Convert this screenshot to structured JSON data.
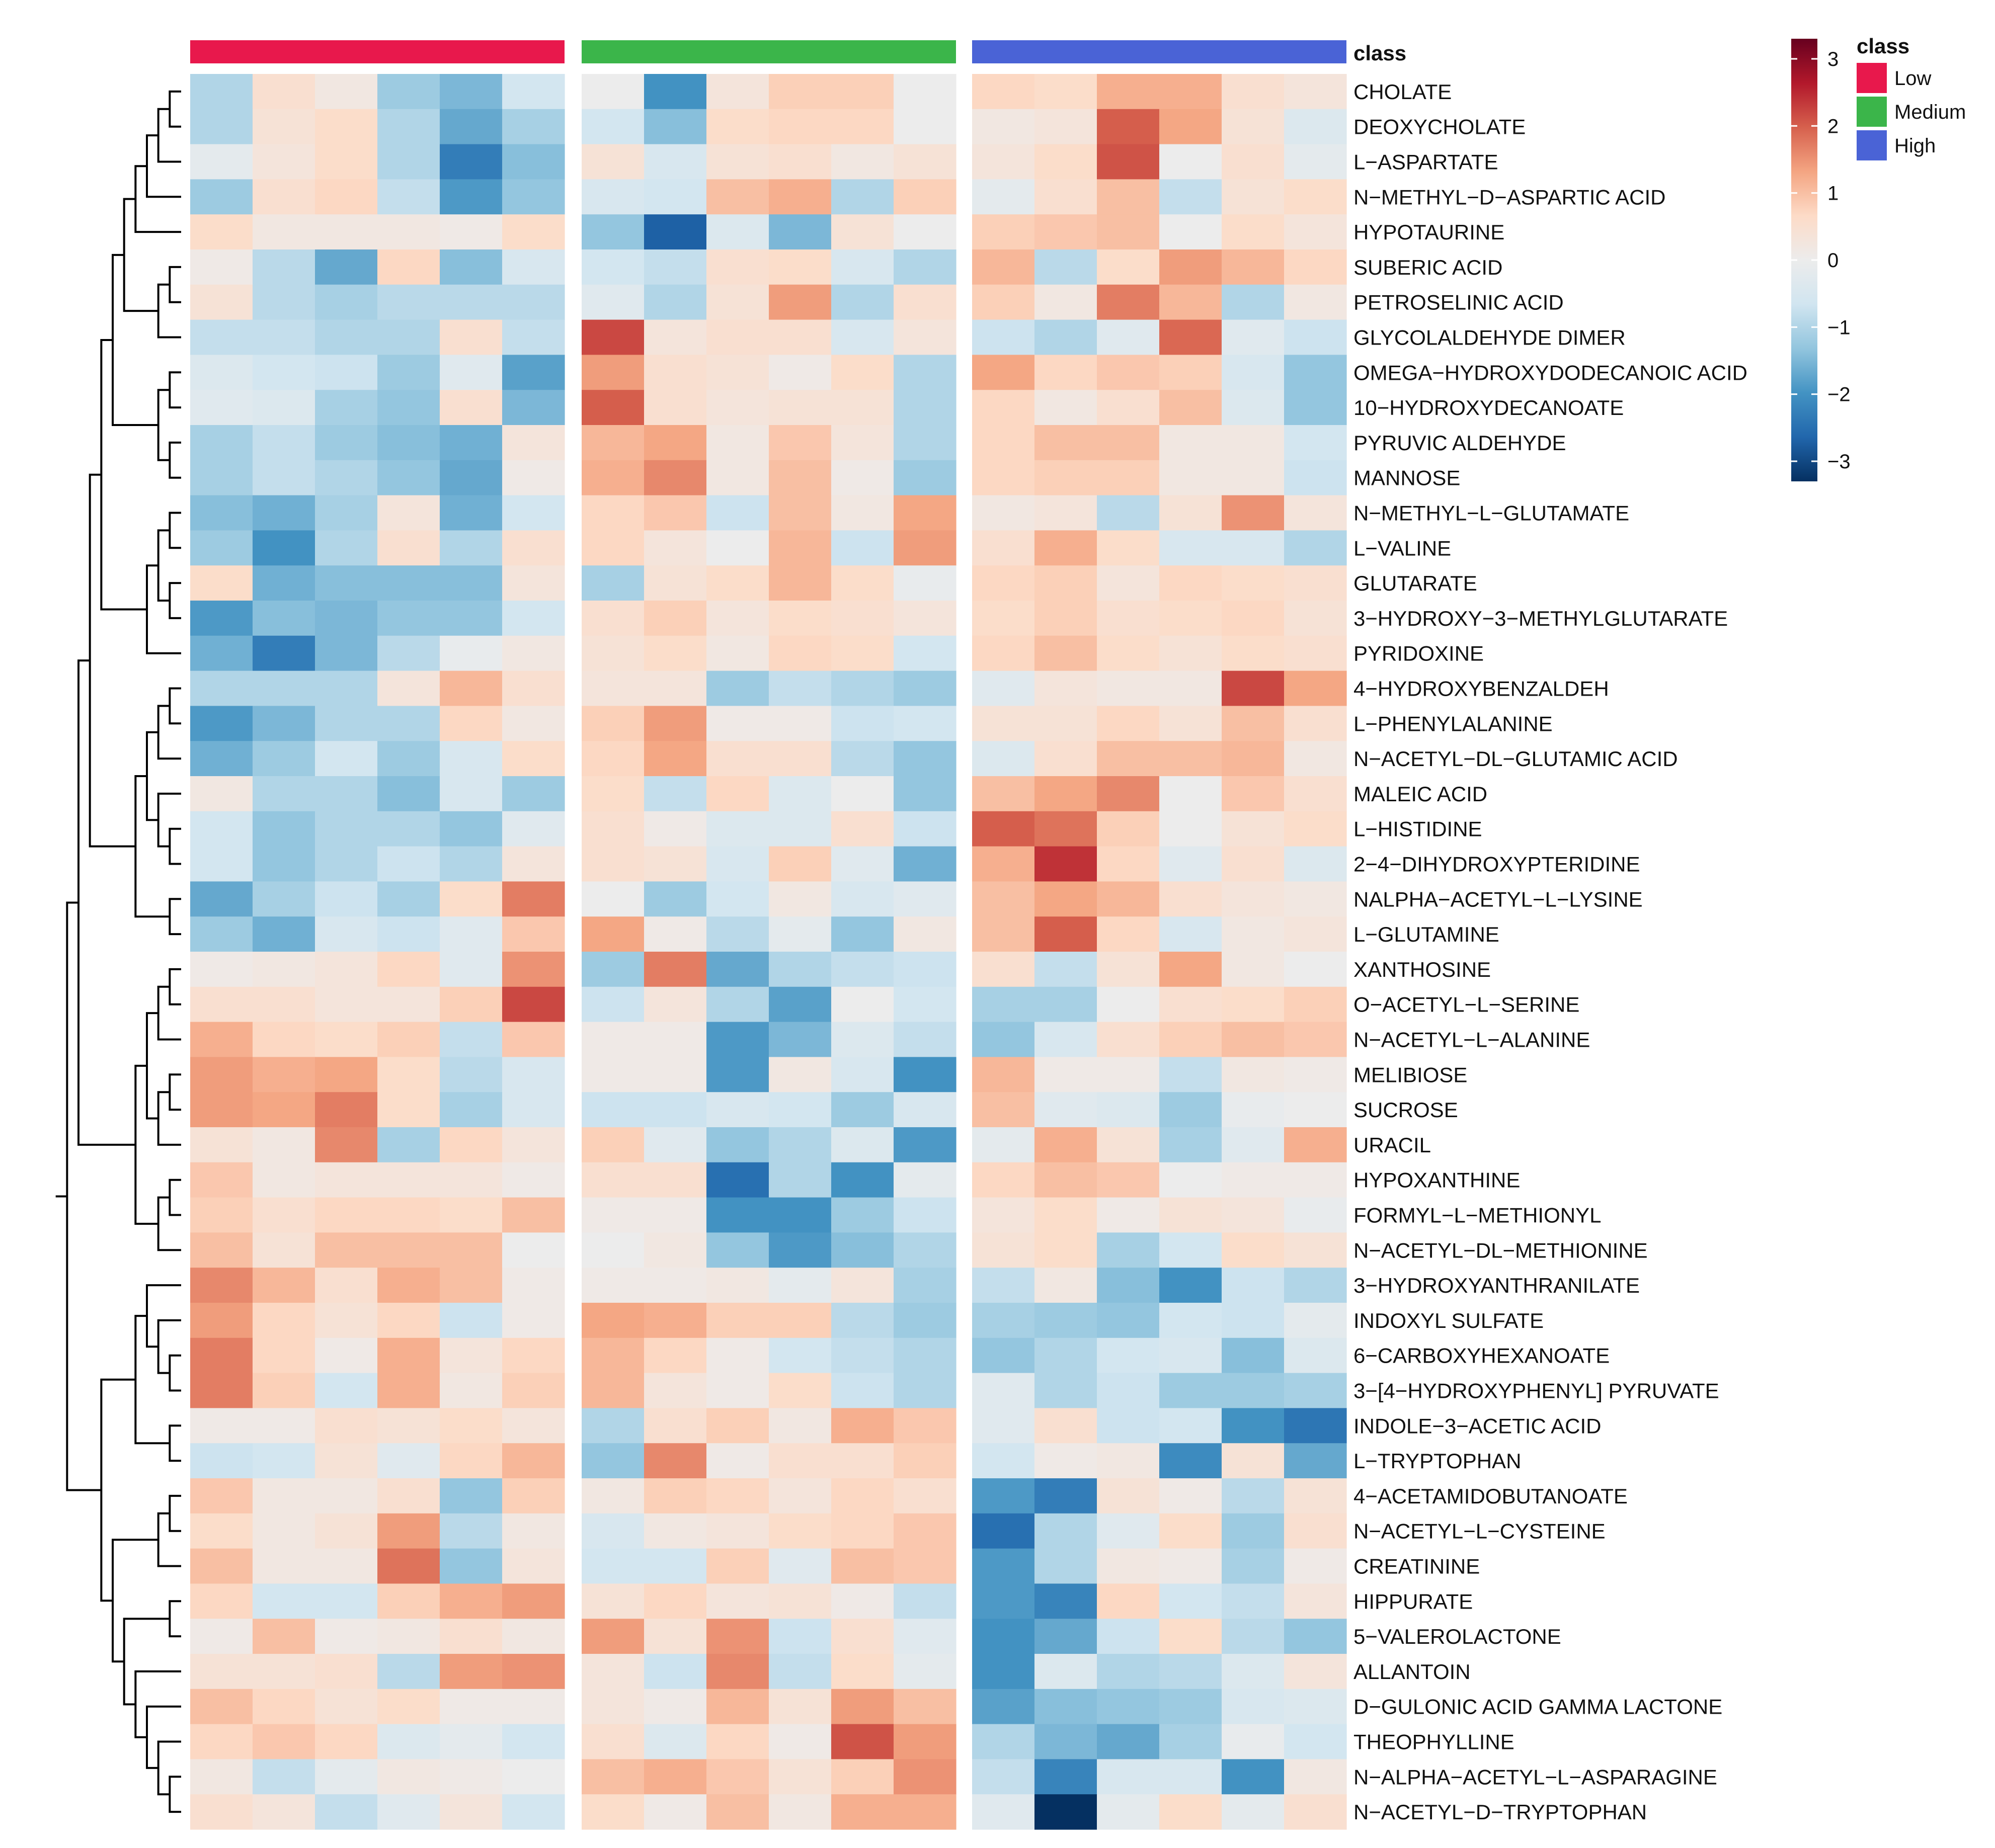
{
  "chart_data": {
    "type": "heatmap",
    "title": "",
    "annotation_title": "class",
    "classes": [
      {
        "name": "Low",
        "color": "#e8184c",
        "n_samples": 6
      },
      {
        "name": "Medium",
        "color": "#3bb54a",
        "n_samples": 6
      },
      {
        "name": "High",
        "color": "#4a63d6",
        "n_samples": 6
      }
    ],
    "color_scale": {
      "min": -3.3,
      "max": 3.3,
      "ticks": [
        3,
        2,
        1,
        0,
        -1,
        -2,
        -3
      ],
      "tick_labels": [
        "3",
        "2",
        "1",
        "0",
        "−1",
        "−2",
        "−3"
      ],
      "colors": [
        "#053061",
        "#2166ac",
        "#4393c3",
        "#92c5de",
        "#d1e5f0",
        "#ececec",
        "#fddbc7",
        "#f4a582",
        "#d6604d",
        "#b2182b",
        "#67001f"
      ]
    },
    "rows": [
      "CHOLATE",
      "DEOXYCHOLATE",
      "L−ASPARTATE",
      "N−METHYL−D−ASPARTIC ACID",
      "HYPOTAURINE",
      "SUBERIC ACID",
      "PETROSELINIC ACID",
      "GLYCOLALDEHYDE DIMER",
      "OMEGA−HYDROXYDODECANOIC ACID",
      "10−HYDROXYDECANOATE",
      "PYRUVIC ALDEHYDE",
      "MANNOSE",
      "N−METHYL−L−GLUTAMATE",
      "L−VALINE",
      "GLUTARATE",
      "3−HYDROXY−3−METHYLGLUTARATE",
      "PYRIDOXINE",
      "4−HYDROXYBENZALDEH",
      "L−PHENYLALANINE",
      "N−ACETYL−DL−GLUTAMIC ACID",
      "MALEIC ACID",
      "L−HISTIDINE",
      "2−4−DIHYDROXYPTERIDINE",
      "NALPHA−ACETYL−L−LYSINE",
      "L−GLUTAMINE",
      "XANTHOSINE",
      "O−ACETYL−L−SERINE",
      "N−ACETYL−L−ALANINE",
      "MELIBIOSE",
      "SUCROSE",
      "URACIL",
      "HYPOXANTHINE",
      "FORMYL−L−METHIONYL",
      "N−ACETYL−DL−METHIONINE",
      "3−HYDROXYANTHRANILATE",
      "INDOXYL SULFATE",
      "6−CARBOXYHEXANOATE",
      "3−[4−HYDROXYPHENYL] PYRUVATE",
      "INDOLE−3−ACETIC ACID",
      "L−TRYPTOPHAN",
      "4−ACETAMIDOBUTANOATE",
      "N−ACETYL−L−CYSTEINE",
      "CREATININE",
      "HIPPURATE",
      "5−VALEROLACTONE",
      "ALLANTOIN",
      "D−GULONIC ACID GAMMA LACTONE",
      "THEOPHYLLINE",
      "N−ALPHA−ACETYL−L−ASPARAGINE",
      "N−ACETYL−D−TRYPTOPHAN"
    ],
    "values": [
      [
        -1.0,
        0.5,
        0.2,
        -1.2,
        -1.5,
        -0.6,
        0.0,
        -2.0,
        0.3,
        0.8,
        0.8,
        0.0,
        0.7,
        0.6,
        1.2,
        1.2,
        0.5,
        0.3
      ],
      [
        -1.0,
        0.4,
        0.6,
        -1.0,
        -1.7,
        -1.1,
        -0.6,
        -1.4,
        0.6,
        0.7,
        0.7,
        0.0,
        0.2,
        0.3,
        2.0,
        1.3,
        0.4,
        -0.4
      ],
      [
        -0.2,
        0.3,
        0.6,
        -1.0,
        -2.3,
        -1.4,
        0.4,
        -0.5,
        0.4,
        0.5,
        0.2,
        0.4,
        0.3,
        0.6,
        2.1,
        0.0,
        0.5,
        -0.2
      ],
      [
        -1.2,
        0.5,
        0.7,
        -0.8,
        -1.9,
        -1.3,
        -0.5,
        -0.6,
        1.0,
        1.2,
        -1.0,
        0.8,
        -0.2,
        0.5,
        1.0,
        -0.8,
        0.4,
        0.6
      ],
      [
        0.6,
        0.2,
        0.2,
        0.2,
        0.1,
        0.6,
        -1.3,
        -2.7,
        -0.4,
        -1.5,
        0.4,
        0.0,
        0.8,
        0.9,
        1.0,
        0.0,
        0.6,
        0.3
      ],
      [
        0.1,
        -0.9,
        -1.7,
        0.7,
        -1.4,
        -0.5,
        -0.6,
        -0.8,
        0.5,
        0.6,
        -0.5,
        -1.0,
        1.1,
        -0.9,
        0.6,
        1.4,
        1.1,
        0.7
      ],
      [
        0.4,
        -0.9,
        -1.1,
        -0.9,
        -0.9,
        -0.9,
        -0.3,
        -1.0,
        0.4,
        1.4,
        -1.0,
        0.5,
        0.8,
        0.2,
        1.7,
        1.1,
        -1.0,
        0.2
      ],
      [
        -0.8,
        -0.8,
        -1.0,
        -1.0,
        0.5,
        -0.8,
        2.2,
        0.3,
        0.5,
        0.5,
        -0.5,
        0.3,
        -0.7,
        -1.0,
        -0.3,
        1.9,
        -0.3,
        -0.7
      ],
      [
        -0.4,
        -0.6,
        -0.7,
        -1.2,
        -0.3,
        -1.8,
        1.4,
        0.5,
        0.4,
        0.1,
        0.6,
        -1.0,
        1.3,
        0.7,
        0.9,
        0.8,
        -0.5,
        -1.3
      ],
      [
        -0.3,
        -0.4,
        -1.1,
        -1.3,
        0.5,
        -1.5,
        2.0,
        0.5,
        0.3,
        0.4,
        0.4,
        -1.0,
        0.7,
        0.2,
        0.5,
        1.0,
        -0.4,
        -1.3
      ],
      [
        -1.1,
        -0.8,
        -1.2,
        -1.4,
        -1.6,
        0.3,
        1.1,
        1.3,
        0.2,
        0.9,
        0.3,
        -1.0,
        0.7,
        1.0,
        1.0,
        0.2,
        0.2,
        -0.6
      ],
      [
        -1.1,
        -0.8,
        -1.0,
        -1.3,
        -1.7,
        0.1,
        1.2,
        1.6,
        0.2,
        1.0,
        0.1,
        -1.2,
        0.7,
        0.8,
        0.8,
        0.2,
        0.2,
        -0.7
      ],
      [
        -1.4,
        -1.6,
        -1.1,
        0.3,
        -1.6,
        -0.6,
        0.7,
        0.9,
        -0.7,
        1.0,
        0.2,
        1.3,
        0.2,
        0.3,
        -0.9,
        0.4,
        1.5,
        0.3
      ],
      [
        -1.2,
        -2.0,
        -1.0,
        0.5,
        -1.0,
        0.5,
        0.7,
        0.3,
        0.0,
        1.1,
        -0.7,
        1.4,
        0.5,
        1.2,
        0.6,
        -0.5,
        -0.5,
        -1.0
      ],
      [
        0.6,
        -1.6,
        -1.4,
        -1.4,
        -1.4,
        0.3,
        -1.1,
        0.4,
        0.6,
        1.1,
        0.6,
        -0.1,
        0.7,
        0.8,
        0.3,
        0.7,
        0.6,
        0.5
      ],
      [
        -1.9,
        -1.4,
        -1.5,
        -1.3,
        -1.3,
        -0.6,
        0.5,
        0.8,
        0.3,
        0.6,
        0.5,
        0.3,
        0.6,
        0.8,
        0.5,
        0.6,
        0.7,
        0.4
      ],
      [
        -1.6,
        -2.3,
        -1.5,
        -0.9,
        -0.1,
        0.2,
        0.4,
        0.6,
        0.2,
        0.7,
        0.6,
        -0.6,
        0.7,
        1.0,
        0.6,
        0.4,
        0.6,
        0.5
      ],
      [
        -1.0,
        -1.0,
        -1.0,
        0.3,
        1.1,
        0.5,
        0.3,
        0.3,
        -1.2,
        -0.8,
        -1.0,
        -1.2,
        -0.3,
        0.3,
        0.2,
        0.2,
        2.2,
        1.3
      ],
      [
        -1.9,
        -1.5,
        -1.0,
        -1.0,
        0.7,
        0.2,
        0.8,
        1.4,
        0.1,
        0.1,
        -0.7,
        -0.6,
        0.4,
        0.4,
        0.7,
        0.4,
        1.0,
        0.5
      ],
      [
        -1.6,
        -1.2,
        -0.6,
        -1.2,
        -0.5,
        0.6,
        0.7,
        1.3,
        0.5,
        0.5,
        -0.9,
        -1.3,
        -0.4,
        0.5,
        1.0,
        1.0,
        1.1,
        0.2
      ],
      [
        0.2,
        -1.0,
        -1.0,
        -1.4,
        -0.5,
        -1.2,
        0.6,
        -0.8,
        0.7,
        -0.4,
        0.0,
        -1.3,
        1.0,
        1.3,
        1.6,
        0.0,
        0.9,
        0.5
      ],
      [
        -0.6,
        -1.3,
        -1.0,
        -1.0,
        -1.3,
        -0.3,
        0.5,
        0.1,
        -0.4,
        -0.4,
        0.5,
        -0.7,
        2.0,
        1.8,
        0.8,
        0.0,
        0.4,
        0.6
      ],
      [
        -0.6,
        -1.3,
        -1.0,
        -0.7,
        -1.0,
        0.3,
        0.5,
        0.4,
        -0.5,
        0.8,
        -0.3,
        -1.6,
        1.2,
        2.4,
        0.7,
        -0.3,
        0.5,
        -0.4
      ],
      [
        -1.7,
        -1.1,
        -0.7,
        -1.1,
        0.6,
        1.7,
        0.0,
        -1.2,
        -0.6,
        0.2,
        -0.5,
        -0.3,
        1.0,
        1.3,
        1.1,
        0.5,
        0.3,
        0.2
      ],
      [
        -1.2,
        -1.6,
        -0.5,
        -0.7,
        -0.3,
        0.9,
        1.3,
        0.1,
        -0.9,
        -0.2,
        -1.3,
        0.2,
        1.0,
        2.0,
        0.7,
        -0.5,
        0.2,
        0.3
      ],
      [
        0.1,
        0.2,
        0.3,
        0.7,
        -0.3,
        1.5,
        -1.2,
        1.7,
        -1.7,
        -1.0,
        -0.8,
        -0.7,
        0.5,
        -0.8,
        0.4,
        1.3,
        0.2,
        0.0
      ],
      [
        0.5,
        0.5,
        0.3,
        0.3,
        0.8,
        2.2,
        -0.7,
        0.3,
        -1.0,
        -1.8,
        0.0,
        -0.6,
        -1.1,
        -1.1,
        0.0,
        0.5,
        0.6,
        0.8
      ],
      [
        1.2,
        0.7,
        0.6,
        0.8,
        -0.8,
        0.9,
        0.1,
        0.1,
        -1.9,
        -1.5,
        -0.4,
        -0.8,
        -1.3,
        -0.5,
        0.5,
        0.8,
        1.0,
        0.9
      ],
      [
        1.4,
        1.2,
        1.3,
        0.6,
        -0.9,
        -0.5,
        0.1,
        0.1,
        -1.9,
        0.2,
        -0.5,
        -2.0,
        1.1,
        0.1,
        0.1,
        -0.8,
        0.2,
        0.1
      ],
      [
        1.4,
        1.3,
        1.7,
        0.6,
        -1.1,
        -0.5,
        -0.7,
        -0.7,
        -0.5,
        -0.6,
        -1.2,
        -0.5,
        1.0,
        -0.3,
        -0.4,
        -1.2,
        -0.1,
        0.0
      ],
      [
        0.4,
        0.2,
        1.6,
        -1.1,
        0.7,
        0.3,
        0.8,
        -0.3,
        -1.3,
        -1.0,
        -0.4,
        -1.9,
        -0.2,
        1.2,
        0.4,
        -1.1,
        -0.3,
        1.2
      ],
      [
        0.9,
        0.2,
        0.3,
        0.3,
        0.3,
        0.1,
        0.5,
        0.5,
        -2.5,
        -1.0,
        -2.0,
        -0.2,
        0.7,
        1.0,
        0.9,
        0.0,
        0.1,
        0.1
      ],
      [
        0.8,
        0.5,
        0.7,
        0.7,
        0.6,
        1.0,
        0.1,
        0.1,
        -2.0,
        -2.0,
        -1.2,
        -0.7,
        0.3,
        0.6,
        0.1,
        0.4,
        0.3,
        -0.1
      ],
      [
        1.0,
        0.4,
        1.0,
        1.0,
        1.0,
        0.0,
        0.0,
        0.2,
        -1.3,
        -1.9,
        -1.4,
        -1.0,
        0.4,
        0.6,
        -1.1,
        -0.6,
        0.6,
        0.4
      ],
      [
        1.6,
        1.1,
        0.5,
        1.2,
        1.0,
        0.1,
        0.1,
        0.1,
        0.2,
        -0.2,
        0.3,
        -1.1,
        -0.8,
        0.2,
        -1.4,
        -2.0,
        -0.7,
        -1.0
      ],
      [
        1.4,
        0.7,
        0.4,
        0.7,
        -0.7,
        0.1,
        1.3,
        1.2,
        0.8,
        0.8,
        -0.9,
        -1.2,
        -1.1,
        -1.2,
        -1.3,
        -0.6,
        -0.7,
        -0.2
      ],
      [
        1.7,
        0.7,
        0.1,
        1.2,
        0.3,
        0.7,
        1.1,
        0.7,
        0.1,
        -0.6,
        -0.8,
        -1.0,
        -1.3,
        -1.0,
        -0.6,
        -0.5,
        -1.4,
        -0.4
      ],
      [
        1.7,
        0.8,
        -0.6,
        1.2,
        0.2,
        0.8,
        1.1,
        0.3,
        0.1,
        0.6,
        -0.7,
        -1.0,
        -0.3,
        -1.0,
        -0.7,
        -1.2,
        -1.2,
        -1.1
      ],
      [
        0.1,
        0.1,
        0.5,
        0.4,
        0.6,
        0.3,
        -1.0,
        0.5,
        0.8,
        0.2,
        1.2,
        0.9,
        -0.3,
        0.5,
        -0.7,
        -0.6,
        -2.0,
        -2.4
      ],
      [
        -0.7,
        -0.6,
        0.4,
        -0.3,
        0.7,
        1.1,
        -1.3,
        1.6,
        0.1,
        0.5,
        0.5,
        0.8,
        -0.6,
        0.1,
        0.2,
        -2.1,
        0.4,
        -1.7
      ],
      [
        0.9,
        0.2,
        0.2,
        0.5,
        -1.3,
        0.8,
        0.2,
        0.8,
        0.7,
        0.3,
        0.7,
        0.5,
        -1.9,
        -2.3,
        0.4,
        0.1,
        -0.9,
        0.4
      ],
      [
        0.6,
        0.2,
        0.4,
        1.4,
        -0.9,
        0.2,
        -0.5,
        0.2,
        0.3,
        0.6,
        0.7,
        0.9,
        -2.5,
        -1.0,
        -0.3,
        0.6,
        -1.2,
        0.5
      ],
      [
        1.0,
        0.2,
        0.2,
        1.8,
        -1.3,
        0.3,
        -0.6,
        -0.6,
        0.8,
        -0.3,
        1.0,
        0.9,
        -1.9,
        -1.0,
        0.2,
        0.1,
        -1.1,
        0.1
      ],
      [
        0.7,
        -0.6,
        -0.6,
        0.8,
        1.2,
        1.4,
        0.4,
        0.7,
        0.3,
        0.4,
        0.1,
        -0.8,
        -1.9,
        -2.2,
        0.7,
        -0.6,
        -0.8,
        0.3
      ],
      [
        0.1,
        1.0,
        0.1,
        0.2,
        0.5,
        0.2,
        1.4,
        0.4,
        1.5,
        -0.7,
        0.5,
        -0.3,
        -2.0,
        -1.7,
        -0.7,
        0.6,
        -0.9,
        -1.3
      ],
      [
        0.4,
        0.4,
        0.5,
        -0.9,
        1.4,
        1.5,
        0.3,
        -0.7,
        1.6,
        -0.8,
        0.6,
        -0.2,
        -2.0,
        -0.4,
        -1.0,
        -0.9,
        -0.4,
        0.3
      ],
      [
        1.0,
        0.7,
        0.4,
        0.6,
        0.1,
        0.1,
        0.3,
        0.1,
        1.1,
        0.4,
        1.4,
        1.0,
        -1.8,
        -1.4,
        -1.3,
        -1.2,
        -0.5,
        -0.4
      ],
      [
        0.7,
        0.9,
        0.7,
        -0.4,
        -0.2,
        -0.6,
        0.5,
        -0.4,
        0.7,
        0.1,
        2.1,
        1.4,
        -1.0,
        -1.5,
        -1.7,
        -1.1,
        -0.1,
        -0.6
      ],
      [
        0.2,
        -0.8,
        -0.2,
        0.2,
        0.1,
        0.0,
        1.0,
        1.2,
        0.9,
        0.4,
        0.8,
        1.5,
        -0.8,
        -2.2,
        -0.5,
        -0.5,
        -2.0,
        0.2
      ],
      [
        0.5,
        0.3,
        -0.8,
        -0.3,
        0.3,
        -0.6,
        0.6,
        0.1,
        1.0,
        0.2,
        1.2,
        1.2,
        -0.3,
        -3.3,
        -0.2,
        0.6,
        -0.2,
        0.5
      ]
    ]
  }
}
